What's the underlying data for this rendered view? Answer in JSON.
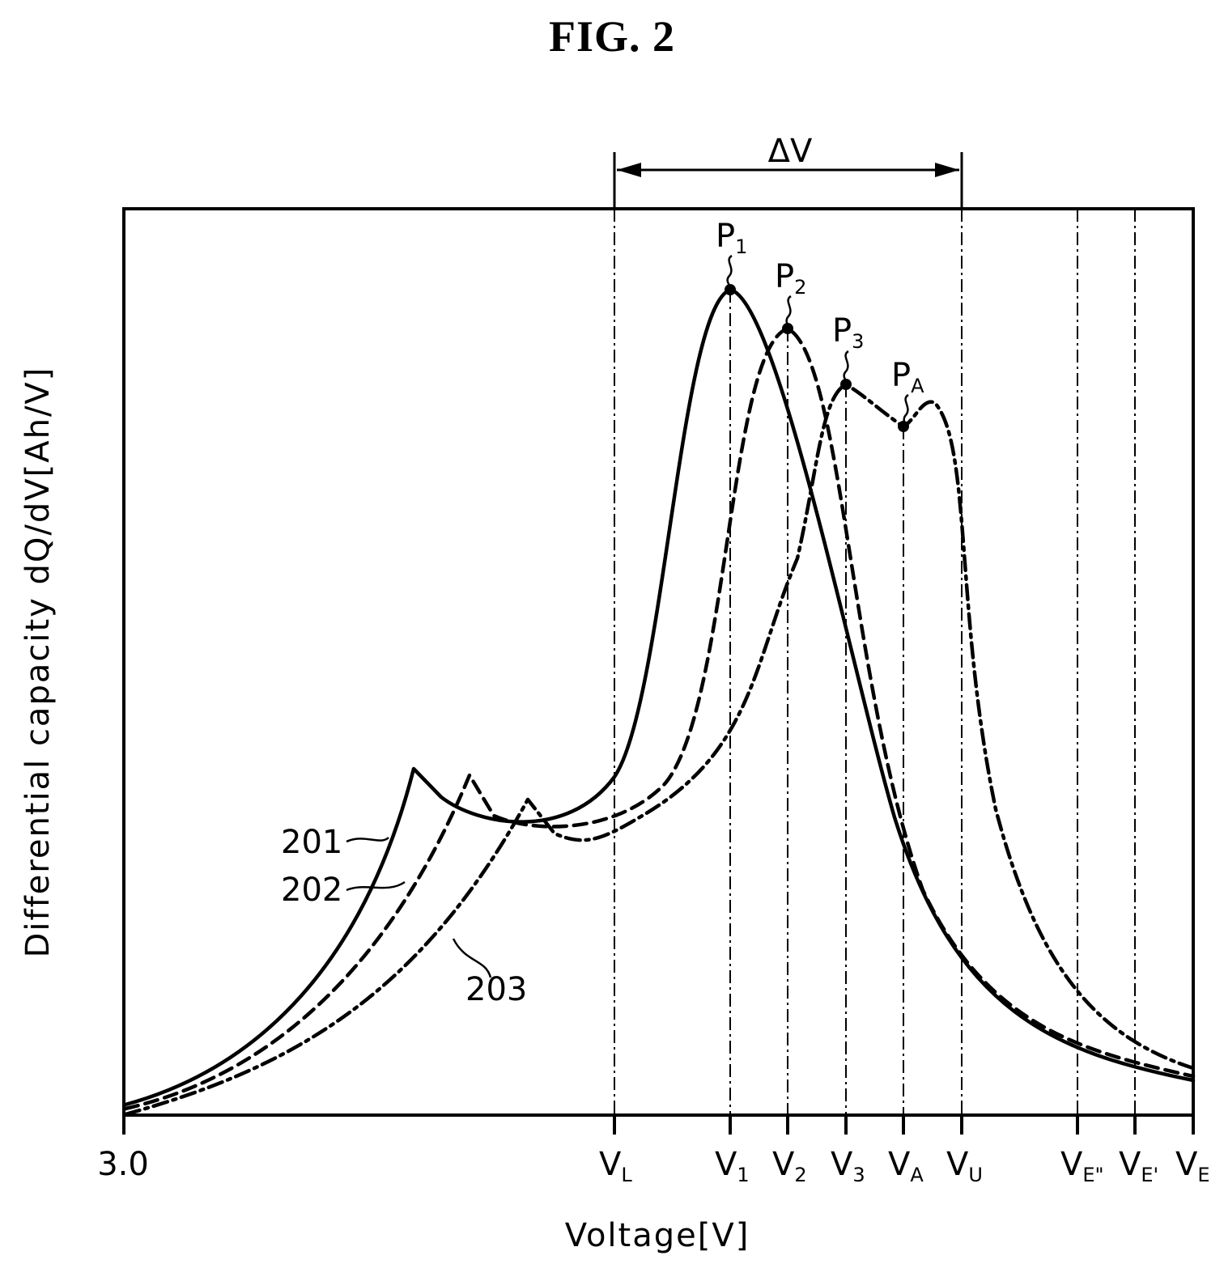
{
  "figure": {
    "title": "FIG. 2"
  },
  "axes": {
    "x_title": "Voltage[V]",
    "y_title": "Differential capacity dQ/dV[Ah/V]",
    "x_start": "3.0"
  },
  "markers": [
    {
      "key": "VL",
      "base": "V",
      "sub": "L"
    },
    {
      "key": "V1",
      "base": "V",
      "sub": "1"
    },
    {
      "key": "V2",
      "base": "V",
      "sub": "2"
    },
    {
      "key": "V3",
      "base": "V",
      "sub": "3"
    },
    {
      "key": "VA",
      "base": "V",
      "sub": "A"
    },
    {
      "key": "VU",
      "base": "V",
      "sub": "U"
    },
    {
      "key": "VE2",
      "base": "V",
      "sub": "E\""
    },
    {
      "key": "VE1",
      "base": "V",
      "sub": "E'"
    },
    {
      "key": "VE",
      "base": "V",
      "sub": "E"
    }
  ],
  "peaks": [
    {
      "key": "P1",
      "base": "P",
      "sub": "1"
    },
    {
      "key": "P2",
      "base": "P",
      "sub": "2"
    },
    {
      "key": "P3",
      "base": "P",
      "sub": "3"
    },
    {
      "key": "PA",
      "base": "P",
      "sub": "A"
    }
  ],
  "delta": {
    "label": "ΔV"
  },
  "curves": [
    {
      "ref": "201",
      "style": "solid"
    },
    {
      "ref": "202",
      "style": "dashed"
    },
    {
      "ref": "203",
      "style": "dash-dot"
    }
  ],
  "colors": {
    "ink": "#000000",
    "background": "#ffffff"
  }
}
